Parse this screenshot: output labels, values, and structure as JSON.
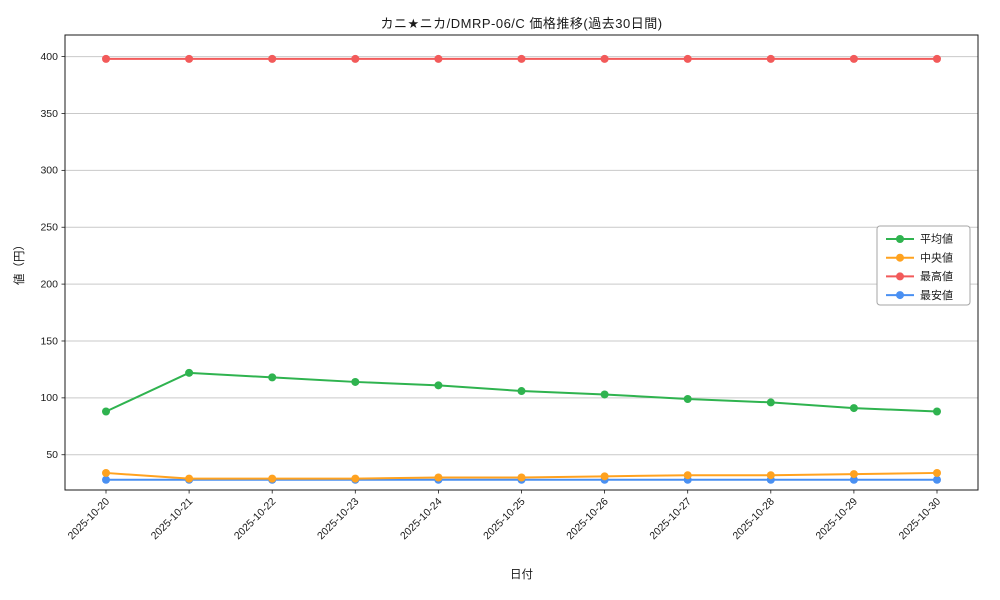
{
  "chart_data": {
    "type": "line",
    "title": "カニ★ニカ/DMRP-06/C 価格推移(過去30日間)",
    "xlabel": "日付",
    "ylabel": "値（円）",
    "x": [
      "2025-10-20",
      "2025-10-21",
      "2025-10-22",
      "2025-10-23",
      "2025-10-24",
      "2025-10-25",
      "2025-10-26",
      "2025-10-27",
      "2025-10-28",
      "2025-10-29",
      "2025-10-30"
    ],
    "series": [
      {
        "name": "平均値",
        "color": "#2fb34f",
        "values": [
          88,
          122,
          118,
          114,
          111,
          106,
          103,
          99,
          96,
          91,
          88
        ]
      },
      {
        "name": "中央値",
        "color": "#ffa21f",
        "values": [
          34,
          29,
          29,
          29,
          30,
          30,
          31,
          32,
          32,
          33,
          34
        ]
      },
      {
        "name": "最高値",
        "color": "#f25a5a",
        "values": [
          398,
          398,
          398,
          398,
          398,
          398,
          398,
          398,
          398,
          398,
          398
        ]
      },
      {
        "name": "最安値",
        "color": "#4a90f2",
        "values": [
          28,
          28,
          28,
          28,
          28,
          28,
          28,
          28,
          28,
          28,
          28
        ]
      }
    ],
    "yticks": [
      50,
      100,
      150,
      200,
      250,
      300,
      350,
      400
    ],
    "ylim": [
      19,
      419
    ],
    "grid": true,
    "legend_position": "center right",
    "colors": {
      "grid": "#c9c9c9",
      "axis": "#1a1a1a",
      "background": "#ffffff"
    }
  }
}
